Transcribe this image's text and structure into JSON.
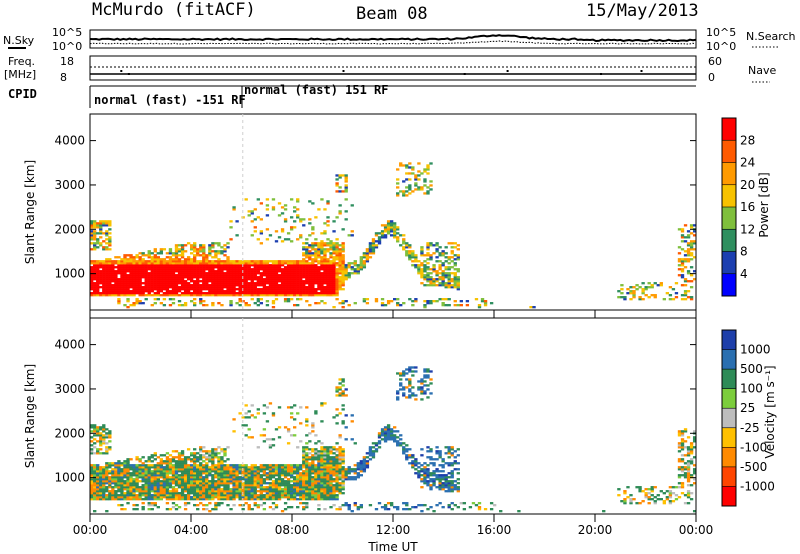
{
  "header": {
    "station": "McMurdo (fitACF)",
    "beam": "Beam 08",
    "date": "15/May/2013"
  },
  "top_panels": {
    "sky_label": "N.Sky",
    "search_label": "N.Search",
    "sky_ticks": [
      "10^5",
      "10^0"
    ],
    "search_ticks": [
      "10^5",
      "10^0"
    ],
    "freq_label": "Freq.",
    "freq_unit": "[MHz]",
    "freq_ticks": [
      "18",
      "8"
    ],
    "nave_label": "Nave",
    "nave_ticks": [
      "60",
      "0"
    ],
    "cpid_label": "CPID",
    "cpid_segments": [
      "normal (fast) -151 RF",
      "normal (fast) 151 RF"
    ]
  },
  "chart_data": [
    {
      "type": "heatmap",
      "name": "power-panel",
      "ylabel": "Slant Range [km]",
      "ylim": [
        180,
        4600
      ],
      "yticks": [
        1000,
        2000,
        3000,
        4000
      ],
      "xlim": [
        0,
        24
      ],
      "colorbar_label": "Power [dB]",
      "colorbar_ticks": [
        "28",
        "24",
        "20",
        "16",
        "12",
        "8",
        "4"
      ],
      "colorbar_colors": [
        "#ff0000",
        "#ff5a00",
        "#ff9a00",
        "#f7c200",
        "#7fbf3c",
        "#2f8f5f",
        "#1c3fb0",
        "#0000ff"
      ]
    },
    {
      "type": "heatmap",
      "name": "velocity-panel",
      "ylabel": "Slant Range [km]",
      "ylim": [
        180,
        4600
      ],
      "yticks": [
        1000,
        2000,
        3000,
        4000
      ],
      "xlim": [
        0,
        24
      ],
      "xlabel": "Time UT",
      "xticks": [
        "00:00",
        "04:00",
        "08:00",
        "12:00",
        "16:00",
        "20:00",
        "00:00"
      ],
      "colorbar_label": "Velocity [m s⁻¹]",
      "colorbar_ticks": [
        "1000",
        "500",
        "100",
        "25",
        "-25",
        "-100",
        "-500",
        "-1000"
      ],
      "colorbar_colors": [
        "#1e3faa",
        "#2a6fb0",
        "#2e8b57",
        "#7ccd3c",
        "#bdbdbd",
        "#ffc000",
        "#ff8a00",
        "#ff4500",
        "#ff0000"
      ]
    }
  ]
}
